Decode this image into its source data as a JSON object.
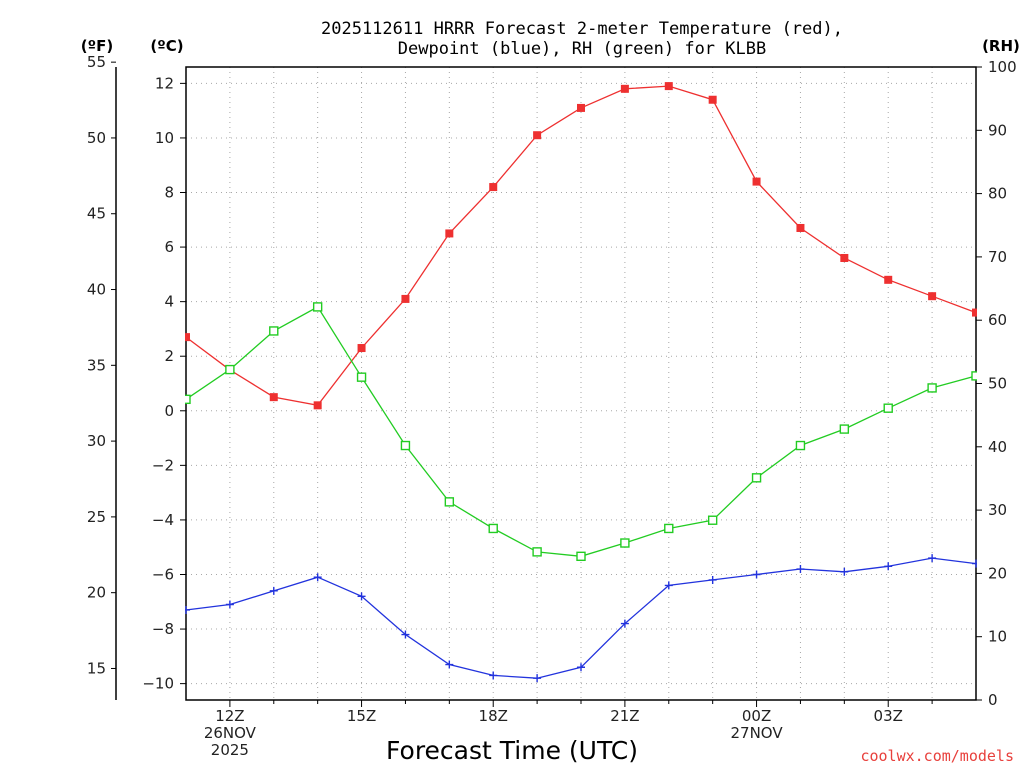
{
  "chart_data": {
    "type": "line",
    "title_lines": [
      "2025112611 HRRR Forecast 2-meter Temperature (red),",
      "Dewpoint (blue), RH (green) for KLBB"
    ],
    "xlabel": "Forecast Time (UTC)",
    "credit": "coolwx.com/models",
    "x_hours": [
      11,
      12,
      13,
      14,
      15,
      16,
      17,
      18,
      19,
      20,
      21,
      22,
      23,
      24,
      25,
      26,
      27,
      28,
      29
    ],
    "xlim": [
      11,
      29
    ],
    "x_ticks": [
      {
        "hour": 12,
        "lines": [
          "12Z",
          "26NOV",
          "2025"
        ]
      },
      {
        "hour": 15,
        "lines": [
          "15Z"
        ]
      },
      {
        "hour": 18,
        "lines": [
          "18Z"
        ]
      },
      {
        "hour": 21,
        "lines": [
          "21Z"
        ]
      },
      {
        "hour": 24,
        "lines": [
          "00Z",
          "27NOV"
        ]
      },
      {
        "hour": 27,
        "lines": [
          "03Z"
        ]
      }
    ],
    "axes": {
      "celsius": {
        "unit_label": "(ºC)",
        "ylim": [
          -10.6,
          12.6
        ],
        "ticks": [
          -10,
          -8,
          -6,
          -4,
          -2,
          0,
          2,
          4,
          6,
          8,
          10,
          12
        ],
        "tick_labels": [
          "−10",
          "−8",
          "−6",
          "−4",
          "−2",
          "0",
          "2",
          "4",
          "6",
          "8",
          "10",
          "12"
        ]
      },
      "fahrenheit": {
        "unit_label": "(ºF)",
        "ticks": [
          15,
          20,
          25,
          30,
          35,
          40,
          45,
          50,
          55
        ],
        "tick_labels": [
          "15",
          "20",
          "25",
          "30",
          "35",
          "40",
          "45",
          "50",
          "55"
        ]
      },
      "rh": {
        "unit_label": "(RH)",
        "ylim": [
          0,
          100
        ],
        "ticks": [
          0,
          10,
          20,
          30,
          40,
          50,
          60,
          70,
          80,
          90,
          100
        ],
        "tick_labels": [
          "0",
          "10",
          "20",
          "30",
          "40",
          "50",
          "60",
          "70",
          "80",
          "90",
          "100"
        ]
      }
    },
    "series": [
      {
        "name": "2-meter Temperature",
        "axis": "celsius",
        "color": "#ee3030",
        "marker": "filled-square",
        "values": [
          2.7,
          1.5,
          0.5,
          0.2,
          2.3,
          4.1,
          6.5,
          8.2,
          10.1,
          11.1,
          11.8,
          11.9,
          11.4,
          8.4,
          6.7,
          5.6,
          4.8,
          4.2,
          3.6
        ]
      },
      {
        "name": "Dewpoint",
        "axis": "celsius",
        "color": "#2233dd",
        "marker": "plus",
        "values": [
          -7.3,
          -7.1,
          -6.6,
          -6.1,
          -6.8,
          -8.2,
          -9.3,
          -9.7,
          -9.8,
          -9.4,
          -7.8,
          -6.4,
          -6.2,
          -6.0,
          -5.8,
          -5.9,
          -5.7,
          -5.4,
          -5.6
        ]
      },
      {
        "name": "RH",
        "axis": "rh",
        "color": "#22cc22",
        "marker": "open-square",
        "values": [
          47.5,
          52.2,
          58.3,
          62.1,
          51.0,
          40.2,
          31.3,
          27.1,
          23.4,
          22.7,
          24.8,
          27.1,
          28.4,
          35.1,
          40.2,
          42.8,
          46.1,
          49.3,
          51.2
        ]
      }
    ]
  }
}
